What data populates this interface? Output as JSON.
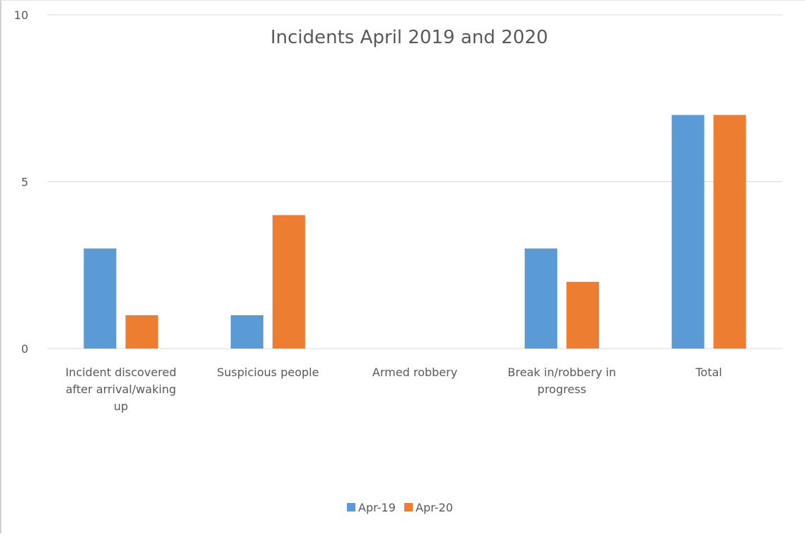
{
  "chart_data": {
    "type": "bar",
    "title": "Incidents April 2019 and 2020",
    "categories": [
      [
        "Incident discovered",
        "after arrival/waking",
        "up"
      ],
      [
        "Suspicious people"
      ],
      [
        "Armed robbery"
      ],
      [
        "Break in/robbery in",
        "progress"
      ],
      [
        "Total"
      ]
    ],
    "series": [
      {
        "name": "Apr-19",
        "color": "#5b9bd5",
        "values": [
          3,
          1,
          0,
          3,
          7
        ]
      },
      {
        "name": "Apr-20",
        "color": "#ed7d31",
        "values": [
          1,
          4,
          0,
          2,
          7
        ]
      }
    ],
    "ylim": [
      0,
      10
    ],
    "yticks": [
      "0",
      "5",
      "10"
    ],
    "grid": true,
    "legend": "bottom"
  }
}
